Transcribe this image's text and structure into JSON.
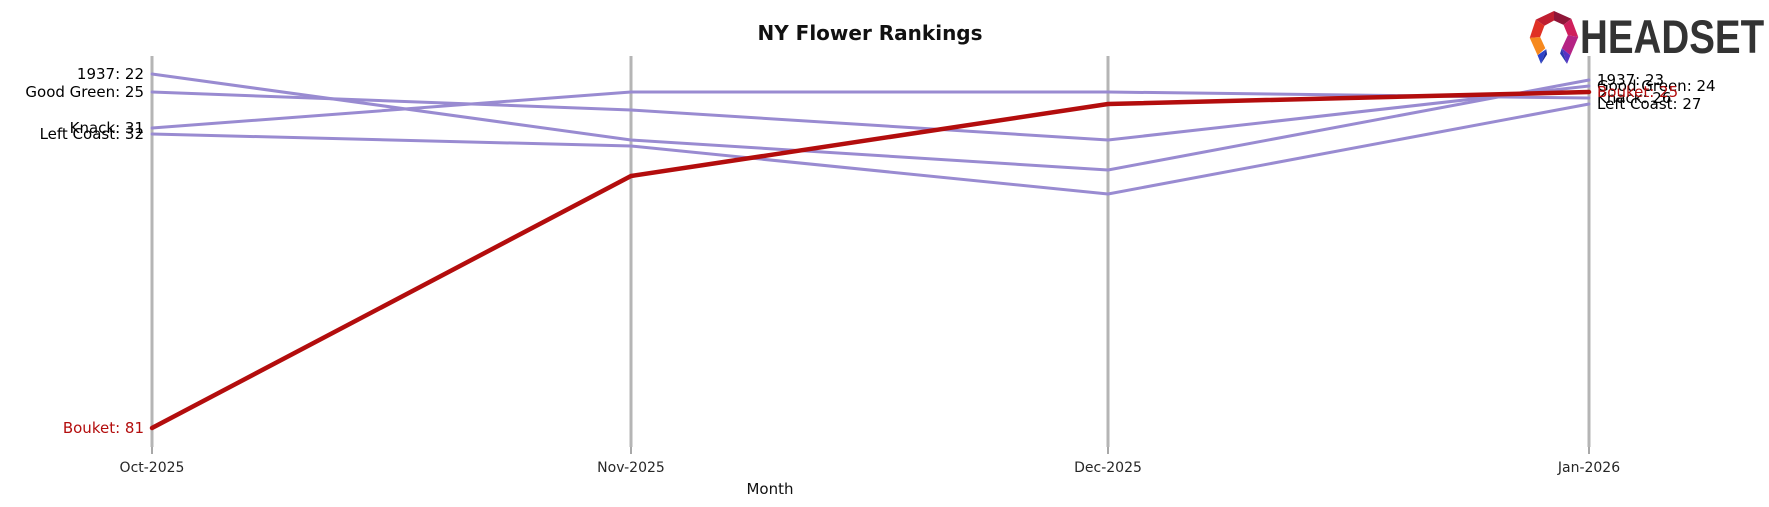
{
  "logo": {
    "brand": "HEADSET"
  },
  "chart_data": {
    "type": "line",
    "title": "NY Flower Rankings",
    "xlabel": "Month",
    "ylabel": "",
    "y_meaning": "market rank (lower number = better rank, plotted higher)",
    "categories": [
      "Oct-2025",
      "Nov-2025",
      "Dec-2025",
      "Jan-2026"
    ],
    "grid": "vertical-gridlines-only",
    "legend_position": "inline-endpoint-labels",
    "ylim_rank": [
      20,
      85
    ],
    "series": [
      {
        "name": "1937",
        "values": [
          22,
          33,
          38,
          23
        ],
        "left_label": "1937: 22",
        "right_label": "1937: 23",
        "color": "#998bd1",
        "highlight": false
      },
      {
        "name": "Good Green",
        "values": [
          25,
          28,
          33,
          24
        ],
        "left_label": "Good Green: 25",
        "right_label": "Good Green: 24",
        "color": "#998bd1",
        "highlight": false
      },
      {
        "name": "Knack",
        "values": [
          31,
          25,
          25,
          26
        ],
        "left_label": "Knack: 31",
        "right_label": "Knack: 26",
        "color": "#998bd1",
        "highlight": false
      },
      {
        "name": "Left Coast",
        "values": [
          32,
          34,
          42,
          27
        ],
        "left_label": "Left Coast: 32",
        "right_label": "Left Coast: 27",
        "color": "#998bd1",
        "highlight": false
      },
      {
        "name": "Bouket",
        "values": [
          81,
          39,
          27,
          25
        ],
        "left_label": "Bouket: 81",
        "right_label": "Bouket: 25",
        "color": "#b30d0d",
        "highlight": true
      }
    ],
    "colors": {
      "series_default": "#998bd1",
      "series_highlight": "#b30d0d",
      "gridline": "#b5b5b5",
      "tick": "#8a8a8a",
      "label_default": "#000000",
      "label_highlight": "#b30d0d"
    }
  }
}
